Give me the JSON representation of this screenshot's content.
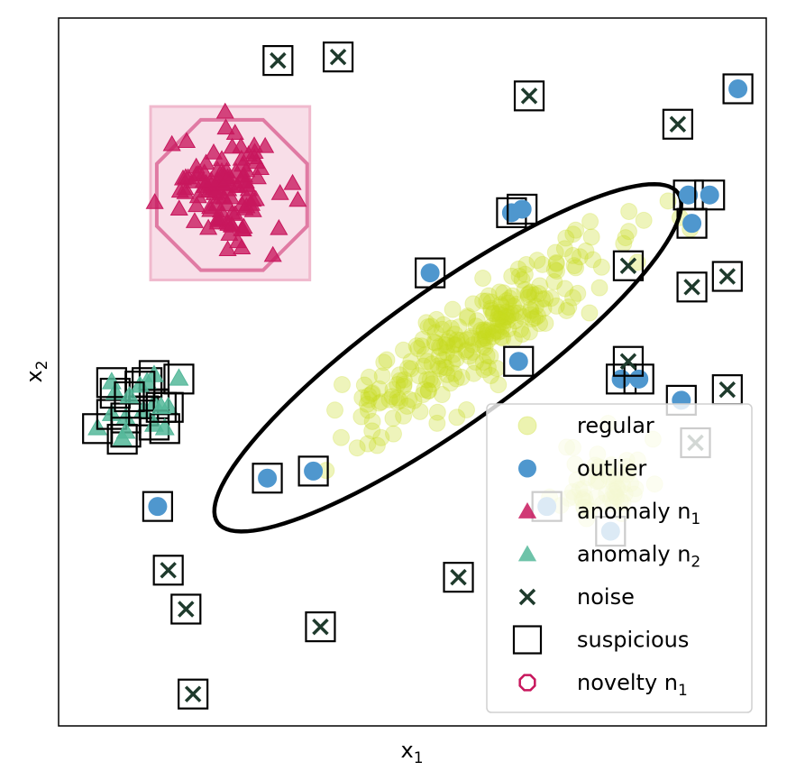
{
  "chart_data": {
    "type": "scatter",
    "title": "",
    "xlabel": "x",
    "xlabel_sub": "1",
    "ylabel": "x",
    "ylabel_sub": "2",
    "xlim": [
      0,
      10
    ],
    "ylim": [
      0,
      10
    ],
    "grid": false,
    "ticks": false,
    "legend_placement": "bottom-right",
    "colors": {
      "regular": "#c8dc1e",
      "outlier": "#4f97ce",
      "anomaly_n1": "#c8175d",
      "anomaly_n2": "#55b89a",
      "noise": "#1e3a2c",
      "suspicious": "#000000",
      "novelty_n1": "#c8175d",
      "novelty_box": "#f6d3e0",
      "ellipse": "#000000"
    },
    "regular_cluster": {
      "center": [
        5.85,
        5.45
      ],
      "angle_deg": 34,
      "spread_major": 2.2,
      "spread_minor": 0.55,
      "count": 260,
      "seed": 7
    },
    "regular_blob": {
      "center": [
        7.7,
        3.45
      ],
      "spread": 0.55,
      "count": 60,
      "seed": 11
    },
    "ellipse": {
      "center": [
        5.5,
        5.2
      ],
      "semi_major": 4.0,
      "semi_minor": 0.95,
      "angle_deg": 35.6
    },
    "outliers": [
      {
        "x": 9.6,
        "y": 9.0,
        "s": 1
      },
      {
        "x": 8.9,
        "y": 7.5,
        "s": 1
      },
      {
        "x": 9.2,
        "y": 7.5,
        "s": 1
      },
      {
        "x": 8.95,
        "y": 7.1,
        "s": 1
      },
      {
        "x": 6.4,
        "y": 7.25,
        "s": 1
      },
      {
        "x": 6.55,
        "y": 7.3,
        "s": 1
      },
      {
        "x": 5.25,
        "y": 6.4,
        "s": 1
      },
      {
        "x": 6.5,
        "y": 5.15,
        "s": 1
      },
      {
        "x": 8.8,
        "y": 4.6,
        "s": 1
      },
      {
        "x": 7.95,
        "y": 4.9,
        "s": 1
      },
      {
        "x": 8.2,
        "y": 4.9,
        "s": 1
      },
      {
        "x": 2.95,
        "y": 3.5,
        "s": 1
      },
      {
        "x": 3.6,
        "y": 3.6,
        "s": 1
      },
      {
        "x": 1.4,
        "y": 3.1,
        "s": 1
      },
      {
        "x": 6.9,
        "y": 3.1,
        "s": 1
      },
      {
        "x": 7.8,
        "y": 2.75,
        "s": 1
      }
    ],
    "noise": [
      {
        "x": 3.1,
        "y": 9.4
      },
      {
        "x": 3.95,
        "y": 9.45
      },
      {
        "x": 6.65,
        "y": 8.9
      },
      {
        "x": 8.75,
        "y": 8.5
      },
      {
        "x": 8.05,
        "y": 6.5
      },
      {
        "x": 8.95,
        "y": 6.2
      },
      {
        "x": 9.45,
        "y": 6.35
      },
      {
        "x": 8.05,
        "y": 5.15
      },
      {
        "x": 9.45,
        "y": 4.75
      },
      {
        "x": 9.0,
        "y": 4.0
      },
      {
        "x": 1.55,
        "y": 2.2
      },
      {
        "x": 1.8,
        "y": 1.65
      },
      {
        "x": 5.65,
        "y": 2.1
      },
      {
        "x": 3.7,
        "y": 1.4
      },
      {
        "x": 1.9,
        "y": 0.45
      }
    ],
    "anomaly_n1_cluster": {
      "center": [
        2.4,
        7.55
      ],
      "spread": 0.38,
      "count": 110,
      "seed": 3
    },
    "novelty_region": {
      "x_range": [
        1.3,
        3.55
      ],
      "y_range": [
        6.3,
        8.75
      ],
      "octagon_center": [
        2.45,
        7.5
      ],
      "octagon_radius": 1.15
    },
    "anomaly_n2": [
      {
        "x": 0.55,
        "y": 4.2,
        "s": 1
      },
      {
        "x": 0.75,
        "y": 4.4,
        "s": 1
      },
      {
        "x": 0.95,
        "y": 4.35,
        "s": 1
      },
      {
        "x": 1.2,
        "y": 4.45,
        "s": 1
      },
      {
        "x": 1.35,
        "y": 4.55,
        "s": 1
      },
      {
        "x": 1.55,
        "y": 4.5,
        "s": 1
      },
      {
        "x": 1.7,
        "y": 4.9,
        "s": 1
      },
      {
        "x": 1.25,
        "y": 4.85,
        "s": 1
      },
      {
        "x": 1.35,
        "y": 4.95,
        "s": 1
      },
      {
        "x": 1.15,
        "y": 4.8,
        "s": 1
      },
      {
        "x": 0.8,
        "y": 4.7,
        "s": 1
      },
      {
        "x": 0.75,
        "y": 4.85,
        "s": 1
      },
      {
        "x": 1.0,
        "y": 4.65,
        "s": 1
      },
      {
        "x": 0.9,
        "y": 4.05,
        "s": 1
      },
      {
        "x": 0.95,
        "y": 4.15,
        "s": 1
      },
      {
        "x": 1.35,
        "y": 4.25,
        "s": 1
      },
      {
        "x": 1.5,
        "y": 4.2,
        "s": 1
      },
      {
        "x": 1.45,
        "y": 4.5,
        "s": 1
      }
    ],
    "legend": [
      {
        "label": "regular",
        "subscript": "",
        "marker": "regular-dot"
      },
      {
        "label": "outlier",
        "subscript": "",
        "marker": "outlier-dot"
      },
      {
        "label": "anomaly n",
        "subscript": "1",
        "marker": "anomaly1-triangle"
      },
      {
        "label": "anomaly n",
        "subscript": "2",
        "marker": "anomaly2-triangle"
      },
      {
        "label": "noise",
        "subscript": "",
        "marker": "noise-x"
      },
      {
        "label": "suspicious",
        "subscript": "",
        "marker": "suspicious-square"
      },
      {
        "label": "novelty n",
        "subscript": "1",
        "marker": "novelty-octagon"
      }
    ]
  }
}
